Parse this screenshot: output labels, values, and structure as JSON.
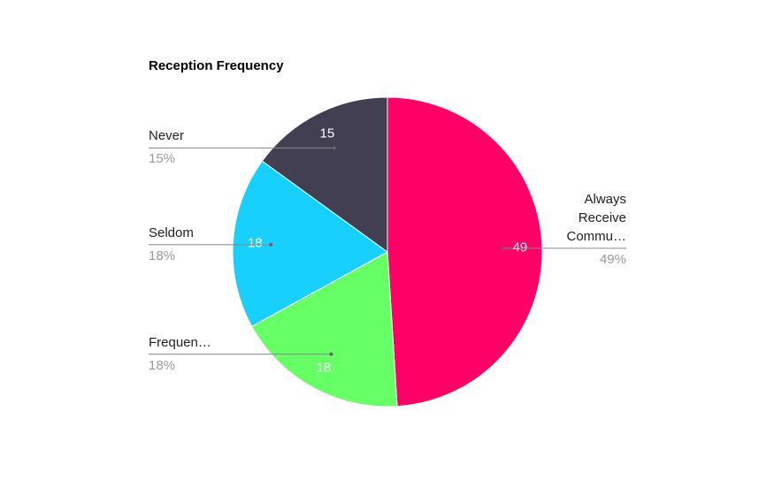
{
  "chart_data": {
    "type": "pie",
    "title": "Reception Frequency",
    "categories": [
      "Always Receive Commu…",
      "Frequen…",
      "Seldom",
      "Never"
    ],
    "values": [
      49,
      18,
      18,
      15
    ],
    "value_labels": [
      "49%",
      "18%",
      "18%",
      "15%"
    ],
    "colors": [
      "#ff0066",
      "#66ff66",
      "#17d0fd",
      "#423f53"
    ]
  }
}
